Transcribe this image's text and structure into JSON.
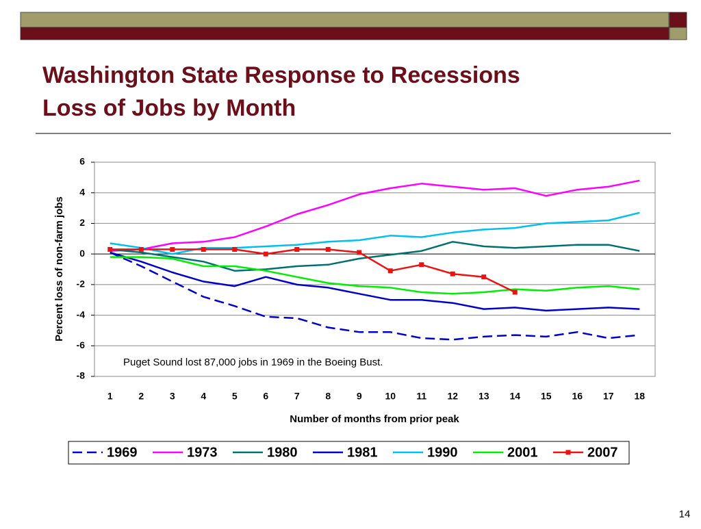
{
  "chart_data": {
    "type": "line",
    "title": "Washington State Response to Recessions",
    "subtitle": "Loss of Jobs by Month",
    "xlabel": "Number of months from prior peak",
    "ylabel": "Percent loss of non-farm jobs",
    "annotation": "Puget Sound lost 87,000 jobs in 1969 in the Boeing Bust.",
    "page_number": "14",
    "categories": [
      1,
      2,
      3,
      4,
      5,
      6,
      7,
      8,
      9,
      10,
      11,
      12,
      13,
      14,
      15,
      16,
      17,
      18
    ],
    "ylim": [
      -8,
      6
    ],
    "yticks": [
      -8,
      -6,
      -4,
      -2,
      0,
      2,
      4,
      6
    ],
    "grid": true,
    "legend": "bottom",
    "series": [
      {
        "name": "1969",
        "color": "#0000cc",
        "dashed": true,
        "values": [
          0.1,
          -0.8,
          -1.8,
          -2.8,
          -3.4,
          -4.1,
          -4.2,
          -4.8,
          -5.1,
          -5.1,
          -5.5,
          -5.6,
          -5.4,
          -5.3,
          -5.4,
          -5.1,
          -5.5,
          -5.3
        ]
      },
      {
        "name": "1973",
        "color": "#ff00ff",
        "values": [
          0.2,
          0.3,
          0.7,
          0.8,
          1.1,
          1.8,
          2.6,
          3.2,
          3.9,
          4.3,
          4.6,
          4.4,
          4.2,
          4.3,
          3.8,
          4.2,
          4.4,
          4.8
        ]
      },
      {
        "name": "1980",
        "color": "#007070",
        "values": [
          0.3,
          0.1,
          -0.2,
          -0.5,
          -1.1,
          -1.0,
          -0.8,
          -0.7,
          -0.3,
          -0.05,
          0.2,
          0.8,
          0.5,
          0.4,
          0.5,
          0.6,
          0.6,
          0.2
        ]
      },
      {
        "name": "1981",
        "color": "#0000cc",
        "values": [
          0.1,
          -0.5,
          -1.2,
          -1.8,
          -2.1,
          -1.5,
          -2.0,
          -2.2,
          -2.6,
          -3.0,
          -3.0,
          -3.2,
          -3.6,
          -3.5,
          -3.7,
          -3.6,
          -3.5,
          -3.6
        ]
      },
      {
        "name": "1990",
        "color": "#00c0f0",
        "values": [
          0.7,
          0.4,
          0.0,
          0.4,
          0.4,
          0.5,
          0.6,
          0.8,
          0.9,
          1.2,
          1.1,
          1.4,
          1.6,
          1.7,
          2.0,
          2.1,
          2.2,
          2.7
        ]
      },
      {
        "name": "2001",
        "color": "#00ee00",
        "values": [
          -0.2,
          -0.2,
          -0.3,
          -0.8,
          -0.8,
          -1.1,
          -1.5,
          -1.9,
          -2.1,
          -2.2,
          -2.5,
          -2.6,
          -2.5,
          -2.3,
          -2.4,
          -2.2,
          -2.1,
          -2.3
        ]
      },
      {
        "name": "2007",
        "color": "#ee1111",
        "markers": true,
        "values": [
          0.3,
          0.3,
          0.3,
          0.3,
          0.3,
          0.0,
          0.3,
          0.3,
          0.1,
          -1.1,
          -0.7,
          -1.3,
          -1.5,
          -2.5,
          null,
          null,
          null,
          null
        ]
      }
    ]
  }
}
